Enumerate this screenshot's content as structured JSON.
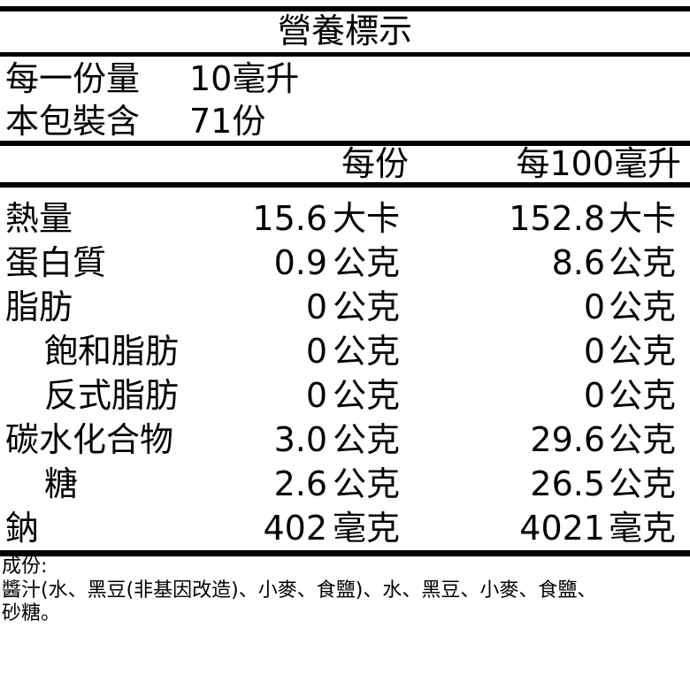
{
  "title": "營養標示",
  "serving": {
    "label": "每一份量",
    "value": "10毫升"
  },
  "package": {
    "label": "本包裝含",
    "value": "71份"
  },
  "columns": {
    "per_serving": "每份",
    "per_100": "每100毫升"
  },
  "rows": [
    {
      "label": "熱量",
      "v1": "15.6",
      "u1": "大卡",
      "v2": "152.8",
      "u2": "大卡",
      "indent": false
    },
    {
      "label": "蛋白質",
      "v1": "0.9",
      "u1": "公克",
      "v2": "8.6",
      "u2": "公克",
      "indent": false
    },
    {
      "label": "脂肪",
      "v1": "0",
      "u1": "公克",
      "v2": "0",
      "u2": "公克",
      "indent": false
    },
    {
      "label": "飽和脂肪",
      "v1": "0",
      "u1": "公克",
      "v2": "0",
      "u2": "公克",
      "indent": true
    },
    {
      "label": "反式脂肪",
      "v1": "0",
      "u1": "公克",
      "v2": "0",
      "u2": "公克",
      "indent": true
    },
    {
      "label": "碳水化合物",
      "v1": "3.0",
      "u1": "公克",
      "v2": "29.6",
      "u2": "公克",
      "indent": false
    },
    {
      "label": "糖",
      "v1": "2.6",
      "u1": "公克",
      "v2": "26.5",
      "u2": "公克",
      "indent": true
    },
    {
      "label": "鈉",
      "v1": "402",
      "u1": "毫克",
      "v2": "4021",
      "u2": "毫克",
      "indent": false
    }
  ],
  "ingredients": {
    "heading": "成份:",
    "line1": "醬汁(水、黑豆(非基因改造)、小麥、食鹽)、水、黑豆、小麥、食鹽、",
    "line2": "砂糖。"
  }
}
